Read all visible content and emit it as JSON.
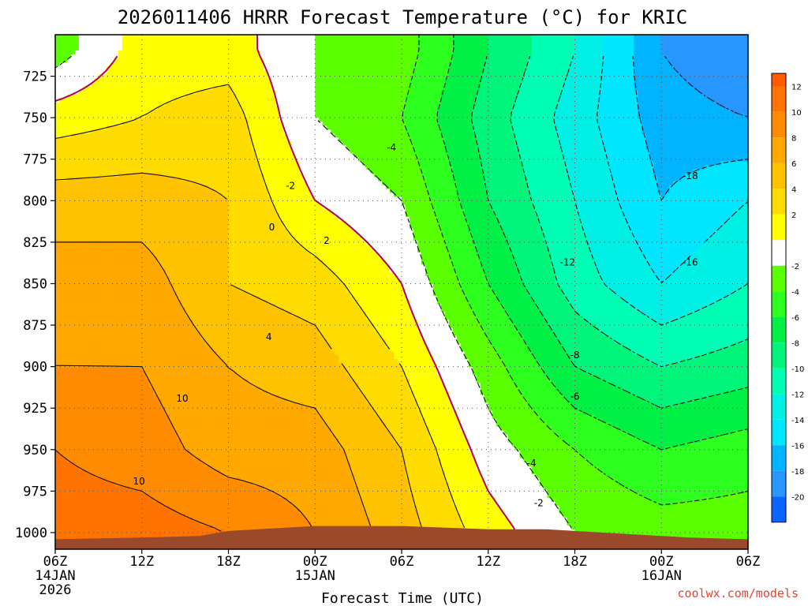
{
  "chart_data": {
    "type": "heatmap",
    "title": "2026011406 HRRR Forecast Temperature (°C) for KRIC",
    "xlabel": "Forecast Time (UTC)",
    "ylabel": "",
    "credit": "coolwx.com/models",
    "x_range_hours": [
      0,
      48
    ],
    "y_range_hPa": [
      700,
      1010
    ],
    "y_ticks": [
      {
        "value": 725,
        "label": "725"
      },
      {
        "value": 750,
        "label": "750"
      },
      {
        "value": 775,
        "label": "775"
      },
      {
        "value": 800,
        "label": "800"
      },
      {
        "value": 825,
        "label": "825"
      },
      {
        "value": 850,
        "label": "850"
      },
      {
        "value": 875,
        "label": "875"
      },
      {
        "value": 900,
        "label": "900"
      },
      {
        "value": 925,
        "label": "925"
      },
      {
        "value": 950,
        "label": "950"
      },
      {
        "value": 975,
        "label": "975"
      },
      {
        "value": 1000,
        "label": "1000"
      }
    ],
    "x_ticks": [
      {
        "hour": 0,
        "label": "06Z",
        "date": "14JAN",
        "year": "2026"
      },
      {
        "hour": 6,
        "label": "12Z"
      },
      {
        "hour": 12,
        "label": "18Z"
      },
      {
        "hour": 18,
        "label": "00Z",
        "date": "15JAN"
      },
      {
        "hour": 24,
        "label": "06Z"
      },
      {
        "hour": 30,
        "label": "12Z"
      },
      {
        "hour": 36,
        "label": "18Z"
      },
      {
        "hour": 42,
        "label": "00Z",
        "date": "16JAN"
      },
      {
        "hour": 48,
        "label": "06Z"
      }
    ],
    "temperature_grid_C": {
      "hours": [
        0,
        6,
        12,
        18,
        24,
        30,
        36,
        42,
        48
      ],
      "levels_hPa": [
        710,
        750,
        800,
        850,
        900,
        950,
        1000
      ],
      "values": [
        [
          -3,
          1,
          1,
          -2,
          -3,
          -8,
          -12,
          -18,
          -20
        ],
        [
          1,
          2,
          3,
          -2,
          -4,
          -9,
          -13,
          -17,
          -18
        ],
        [
          5,
          5,
          4,
          0,
          -2,
          -8,
          -12,
          -16,
          -14
        ],
        [
          7,
          7,
          4,
          3,
          0,
          -6,
          -11,
          -14,
          -12
        ],
        [
          8,
          8,
          6,
          5,
          2,
          -3,
          -8,
          -10,
          -9
        ],
        [
          10,
          9,
          7,
          7,
          4,
          -1,
          -4,
          -6,
          -5
        ],
        [
          11,
          11,
          10,
          8,
          5,
          1,
          -2,
          -3,
          -3
        ]
      ]
    },
    "contour_labels": [
      {
        "text": "-2",
        "hour": 16.3,
        "level": 793
      },
      {
        "text": "-4",
        "hour": 23.3,
        "level": 770
      },
      {
        "text": "0",
        "hour": 15.0,
        "level": 818
      },
      {
        "text": "2",
        "hour": 18.8,
        "level": 826
      },
      {
        "text": "4",
        "hour": 14.8,
        "level": 884
      },
      {
        "text": "10",
        "hour": 8.8,
        "level": 921
      },
      {
        "text": "10",
        "hour": 5.8,
        "level": 971
      },
      {
        "text": "-12",
        "hour": 35.5,
        "level": 839
      },
      {
        "text": "-8",
        "hour": 36.0,
        "level": 895
      },
      {
        "text": "-6",
        "hour": 36.0,
        "level": 920
      },
      {
        "text": "-4",
        "hour": 33.0,
        "level": 960
      },
      {
        "text": "-2",
        "hour": 33.5,
        "level": 984
      },
      {
        "text": "-18",
        "hour": 44.0,
        "level": 787
      },
      {
        "text": "-16",
        "hour": 44.0,
        "level": 839
      }
    ],
    "colorbar": [
      {
        "label": "12",
        "color": "#ff7300"
      },
      {
        "label": "10",
        "color": "#ff8c00"
      },
      {
        "label": "8",
        "color": "#ffa800"
      },
      {
        "label": "6",
        "color": "#ffc200"
      },
      {
        "label": "4",
        "color": "#ffdc00"
      },
      {
        "label": "2",
        "color": "#ffff00"
      },
      {
        "label": "",
        "color": "#ffffff"
      },
      {
        "label": "-2",
        "color": "#5aff00"
      },
      {
        "label": "-4",
        "color": "#2dff1e"
      },
      {
        "label": "-6",
        "color": "#00f046"
      },
      {
        "label": "-8",
        "color": "#00f57a"
      },
      {
        "label": "-10",
        "color": "#00ffb4"
      },
      {
        "label": "-12",
        "color": "#00f0e6"
      },
      {
        "label": "-14",
        "color": "#00e6ff"
      },
      {
        "label": "-16",
        "color": "#00b4ff"
      },
      {
        "label": "-18",
        "color": "#2896ff"
      },
      {
        "label": "-20",
        "color": "#0a64ff"
      }
    ],
    "colorbar_top_color": "#ff5a00",
    "ground_color": "#9a4a2a",
    "grid": true
  }
}
